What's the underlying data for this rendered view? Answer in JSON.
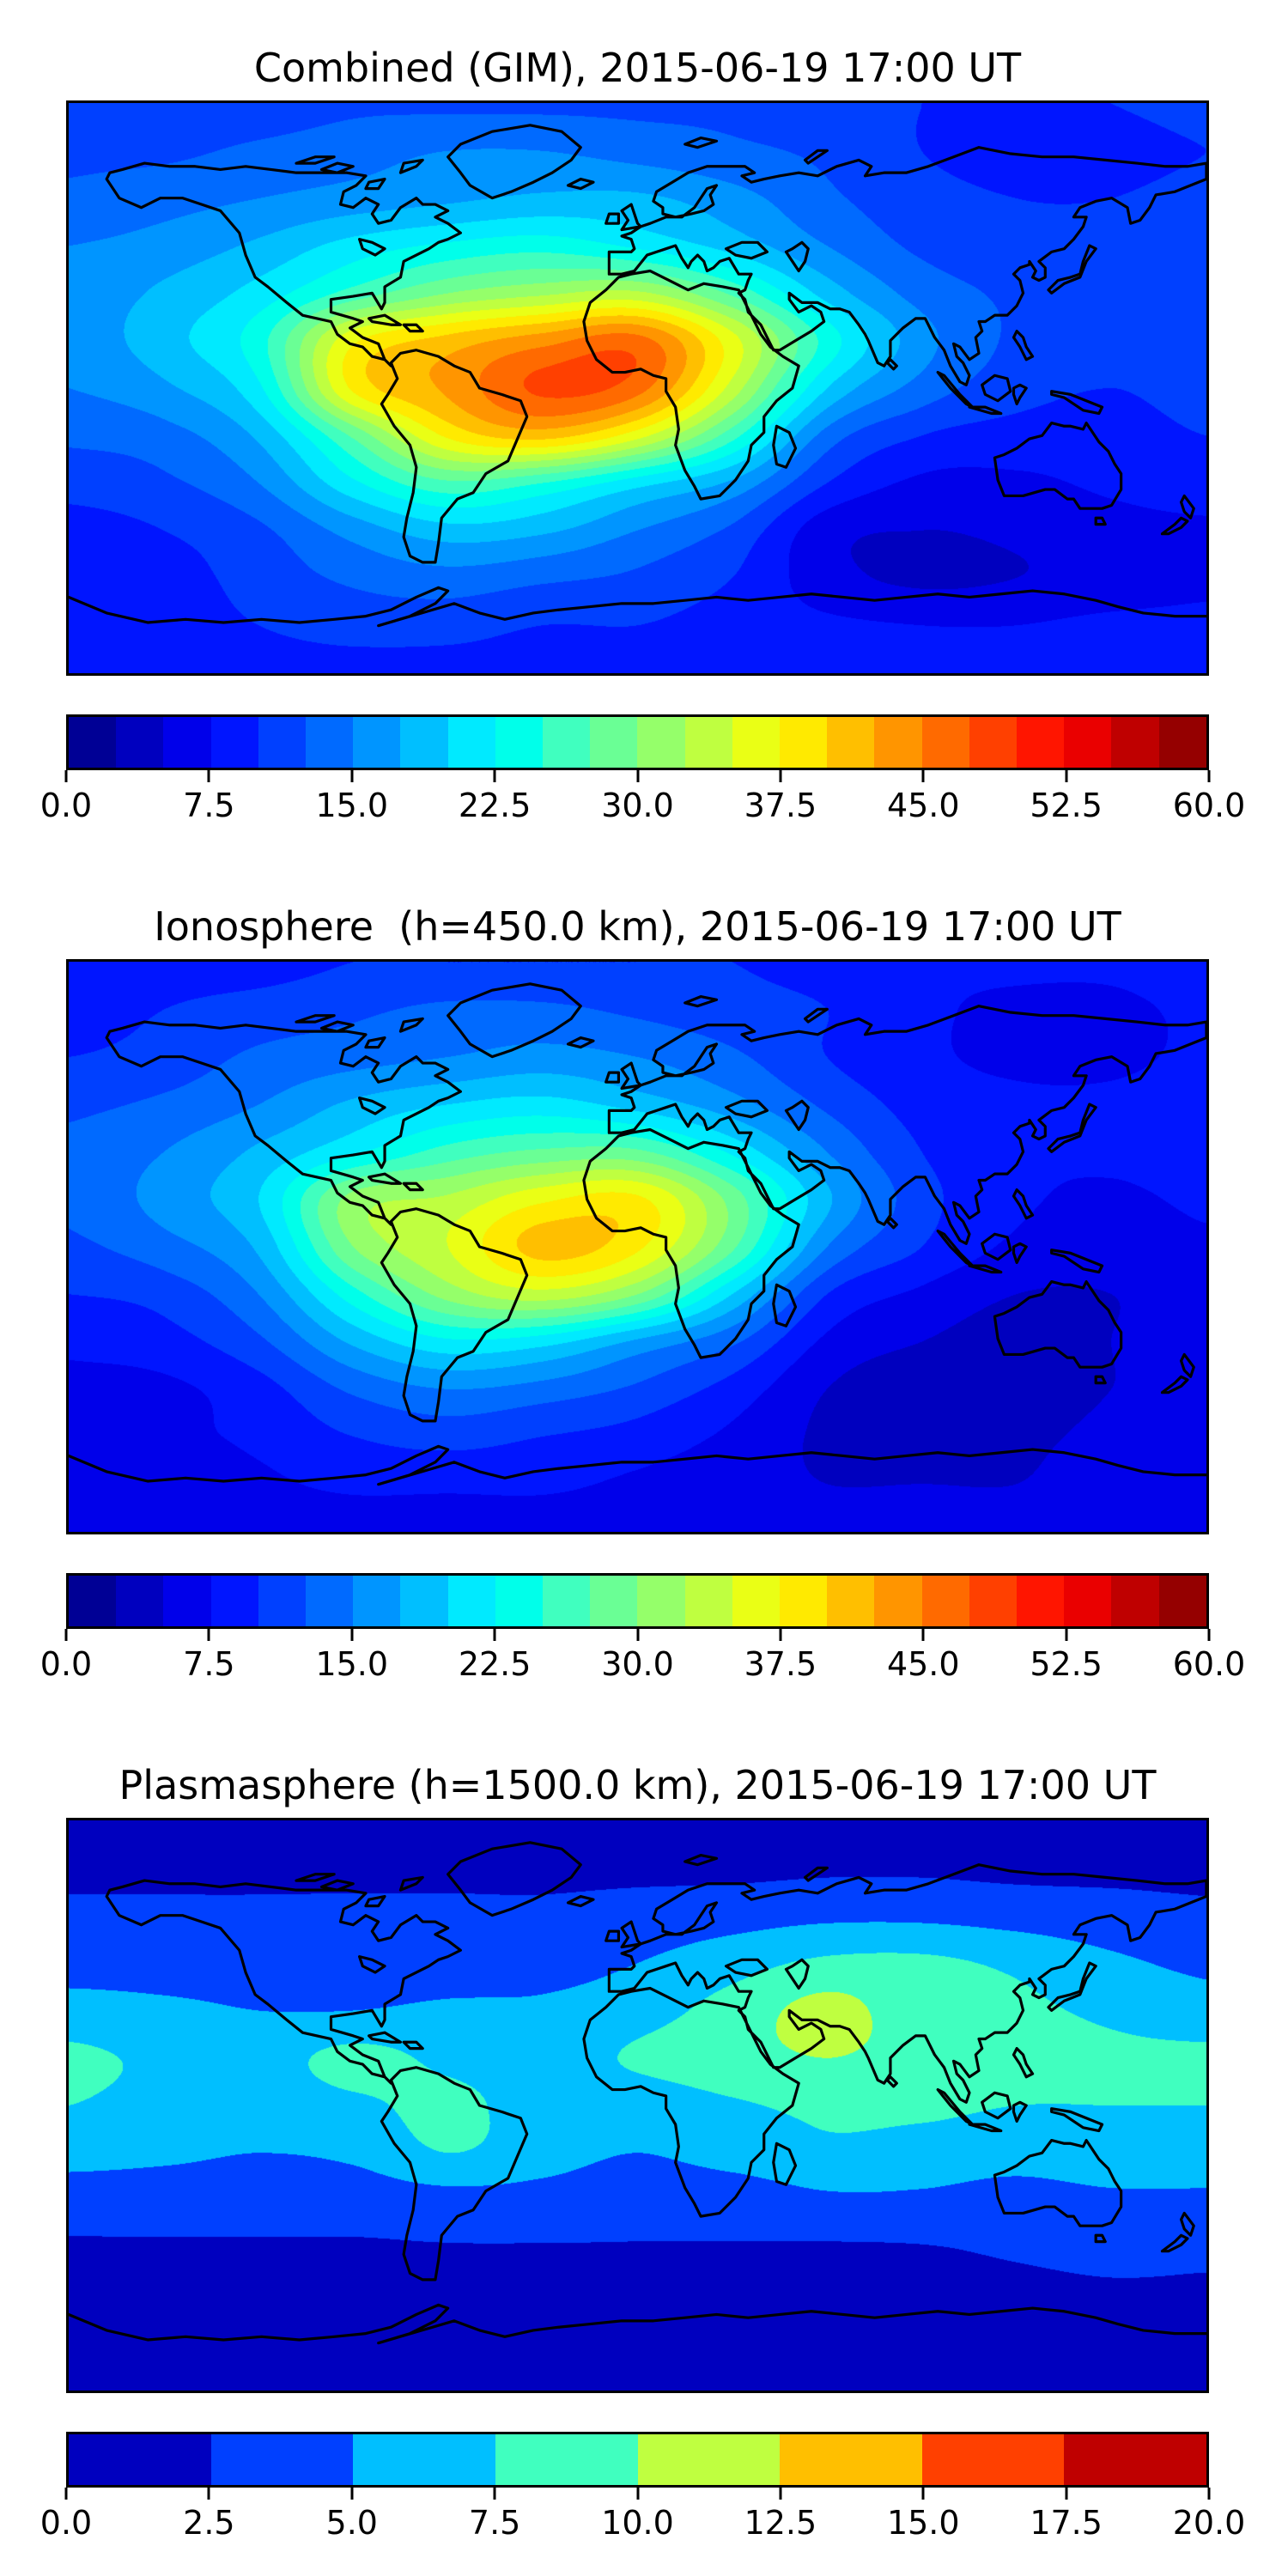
{
  "figure": {
    "background": "#ffffff",
    "text_color": "#000000",
    "coastline_color": "#000000",
    "colormap_name": "jet"
  },
  "panels": [
    {
      "title": "Combined (GIM), 2015-06-19 17:00 UT",
      "colorbar": {
        "orientation": "horizontal",
        "vmin": 0.0,
        "vmax": 60.0,
        "tick_labels": [
          "0.0",
          "7.5",
          "15.0",
          "22.5",
          "30.0",
          "37.5",
          "45.0",
          "52.5",
          "60.0"
        ],
        "segment_colors": [
          "#000095",
          "#0000bf",
          "#0000ea",
          "#0015ff",
          "#0040ff",
          "#006aff",
          "#0095ff",
          "#00bfff",
          "#00eaff",
          "#00ffea",
          "#40ffbf",
          "#6aff95",
          "#95ff6a",
          "#bfff40",
          "#eaff15",
          "#ffea00",
          "#ffbf00",
          "#ff9500",
          "#ff6a00",
          "#ff4000",
          "#ff1500",
          "#ea0000",
          "#bf0000",
          "#950000"
        ]
      }
    },
    {
      "title": "Ionosphere  (h=450.0 km), 2015-06-19 17:00 UT",
      "colorbar": {
        "orientation": "horizontal",
        "vmin": 0.0,
        "vmax": 60.0,
        "tick_labels": [
          "0.0",
          "7.5",
          "15.0",
          "22.5",
          "30.0",
          "37.5",
          "45.0",
          "52.5",
          "60.0"
        ],
        "segment_colors": [
          "#000095",
          "#0000bf",
          "#0000ea",
          "#0015ff",
          "#0040ff",
          "#006aff",
          "#0095ff",
          "#00bfff",
          "#00eaff",
          "#00ffea",
          "#40ffbf",
          "#6aff95",
          "#95ff6a",
          "#bfff40",
          "#eaff15",
          "#ffea00",
          "#ffbf00",
          "#ff9500",
          "#ff6a00",
          "#ff4000",
          "#ff1500",
          "#ea0000",
          "#bf0000",
          "#950000"
        ]
      }
    },
    {
      "title": "Plasmasphere (h=1500.0 km), 2015-06-19 17:00 UT",
      "colorbar": {
        "orientation": "horizontal",
        "vmin": 0.0,
        "vmax": 20.0,
        "tick_labels": [
          "0.0",
          "2.5",
          "5.0",
          "7.5",
          "10.0",
          "12.5",
          "15.0",
          "17.5",
          "20.0"
        ],
        "segment_colors": [
          "#0000bf",
          "#0040ff",
          "#00bfff",
          "#40ffbf",
          "#bfff40",
          "#ffbf00",
          "#ff4000",
          "#bf0000"
        ]
      }
    }
  ],
  "chart_data": [
    {
      "type": "heatmap",
      "title": "Combined (GIM), 2015-06-19 17:00 UT",
      "colormap": "jet",
      "vmin": 0.0,
      "vmax": 60.0,
      "level_step": 2.5,
      "n_levels": 24,
      "colorbar_ticks": [
        0.0,
        7.5,
        15.0,
        22.5,
        30.0,
        37.5,
        45.0,
        52.5,
        60.0
      ],
      "projection": "equirectangular",
      "lon": [
        -180,
        -150,
        -120,
        -90,
        -60,
        -30,
        0,
        30,
        60,
        90,
        120,
        150,
        180
      ],
      "lat": [
        90,
        75,
        60,
        45,
        30,
        15,
        0,
        -15,
        -30,
        -45,
        -60,
        -75,
        -90
      ],
      "values": [
        [
          11,
          11,
          11,
          12,
          12,
          12,
          12,
          12,
          11,
          10,
          10,
          10,
          11
        ],
        [
          12,
          12,
          13,
          14,
          15,
          15,
          14,
          13,
          12,
          10,
          9,
          9,
          10
        ],
        [
          13,
          14,
          15,
          16,
          17,
          18,
          18,
          16,
          13,
          11,
          10,
          10,
          11
        ],
        [
          15,
          16,
          18,
          21,
          23,
          24,
          22,
          19,
          15,
          12,
          11,
          11,
          12
        ],
        [
          16,
          18,
          21,
          26,
          30,
          32,
          33,
          27,
          19,
          14,
          12,
          11,
          12
        ],
        [
          16,
          19,
          24,
          37,
          41,
          44,
          46,
          36,
          24,
          16,
          12,
          11,
          12
        ],
        [
          15,
          17,
          22,
          38,
          43,
          48,
          46,
          34,
          20,
          14,
          11,
          10,
          11
        ],
        [
          13,
          14,
          18,
          28,
          38,
          41,
          36,
          26,
          14,
          10,
          9,
          9,
          10
        ],
        [
          11,
          12,
          15,
          22,
          27,
          25,
          21,
          17,
          10,
          7,
          7,
          8,
          9
        ],
        [
          9,
          10,
          12,
          16,
          19,
          18,
          15,
          12,
          6,
          5,
          5.5,
          6.5,
          7
        ],
        [
          9,
          9,
          11,
          13,
          14,
          13,
          12,
          10,
          6,
          4.5,
          5,
          6,
          7
        ],
        [
          9,
          9,
          10,
          11,
          11,
          10,
          10,
          9,
          8,
          7.5,
          7.5,
          8,
          8
        ],
        [
          9,
          9,
          9,
          9,
          9,
          9,
          9,
          9,
          9,
          8,
          8,
          8,
          8
        ]
      ]
    },
    {
      "type": "heatmap",
      "title": "Ionosphere  (h=450.0 km), 2015-06-19 17:00 UT",
      "colormap": "jet",
      "vmin": 0.0,
      "vmax": 60.0,
      "level_step": 2.5,
      "n_levels": 24,
      "colorbar_ticks": [
        0.0,
        7.5,
        15.0,
        22.5,
        30.0,
        37.5,
        45.0,
        52.5,
        60.0
      ],
      "projection": "equirectangular",
      "lon": [
        -180,
        -150,
        -120,
        -90,
        -60,
        -30,
        0,
        30,
        60,
        90,
        120,
        150,
        180
      ],
      "lat": [
        90,
        75,
        60,
        45,
        30,
        15,
        0,
        -15,
        -30,
        -45,
        -60,
        -75,
        -90
      ],
      "values": [
        [
          9,
          9,
          9,
          10,
          10,
          10,
          10,
          10,
          9,
          8,
          8,
          8,
          9
        ],
        [
          9,
          10,
          11,
          12,
          13,
          13,
          12,
          11,
          10,
          8,
          7,
          7,
          8
        ],
        [
          10,
          11,
          13,
          14,
          15,
          16,
          15,
          13,
          10,
          8,
          7,
          7,
          8
        ],
        [
          12,
          13,
          15,
          18,
          20,
          21,
          19,
          16,
          12,
          9,
          8,
          8,
          9
        ],
        [
          13,
          15,
          18,
          22,
          26,
          28,
          28,
          22,
          15,
          10,
          8,
          8,
          9
        ],
        [
          13,
          16,
          20,
          31,
          33,
          37,
          38,
          29,
          18,
          11,
          8,
          7,
          8
        ],
        [
          12,
          14,
          18,
          30,
          35,
          41,
          38,
          28,
          15,
          10,
          7,
          6,
          7
        ],
        [
          10,
          11,
          15,
          24,
          31,
          34,
          30,
          20,
          10,
          7,
          5,
          5,
          6
        ],
        [
          8,
          9,
          12,
          18,
          22,
          21,
          17,
          13,
          7,
          5,
          4,
          5,
          6
        ],
        [
          7,
          7,
          9,
          13,
          15,
          14,
          12,
          9,
          5,
          3.5,
          4,
          5,
          5.5
        ],
        [
          7,
          7,
          8,
          10,
          11,
          10,
          9,
          7,
          4.5,
          3.5,
          4.5,
          5.5,
          6.5
        ],
        [
          6,
          6,
          7,
          8,
          8,
          8,
          7,
          6,
          5,
          5,
          5,
          6,
          6
        ],
        [
          6,
          6,
          6,
          6,
          6,
          6,
          6,
          6,
          6,
          6,
          6,
          6,
          6
        ]
      ]
    },
    {
      "type": "heatmap",
      "title": "Plasmasphere (h=1500.0 km), 2015-06-19 17:00 UT",
      "colormap": "jet",
      "vmin": 0.0,
      "vmax": 20.0,
      "level_step": 2.5,
      "n_levels": 8,
      "colorbar_ticks": [
        0.0,
        2.5,
        5.0,
        7.5,
        10.0,
        12.5,
        15.0,
        17.5,
        20.0
      ],
      "projection": "equirectangular",
      "lon": [
        -180,
        -150,
        -120,
        -90,
        -60,
        -30,
        0,
        30,
        60,
        90,
        120,
        150,
        180
      ],
      "lat": [
        90,
        75,
        60,
        45,
        30,
        15,
        0,
        -15,
        -30,
        -45,
        -60,
        -75,
        -90
      ],
      "values": [
        [
          2,
          2,
          2,
          2,
          2,
          2,
          2,
          2,
          2,
          2,
          2,
          2,
          2
        ],
        [
          2,
          2,
          2,
          2,
          2,
          2,
          2,
          2,
          2.2,
          2.2,
          2,
          2,
          2
        ],
        [
          3,
          3,
          3,
          3,
          3,
          3,
          3.5,
          4,
          4.5,
          4.5,
          4,
          3.5,
          3
        ],
        [
          4,
          4,
          4,
          3.5,
          3.5,
          4,
          5,
          6.5,
          8,
          8,
          7,
          5.5,
          4.5
        ],
        [
          6,
          5.5,
          5,
          5,
          5.5,
          5.5,
          6.5,
          8.5,
          10.8,
          8.5,
          8,
          7,
          6
        ],
        [
          8,
          7,
          6.5,
          8.2,
          7,
          6.5,
          7.8,
          9,
          10,
          9,
          8.5,
          8,
          8
        ],
        [
          7.5,
          6.5,
          6,
          7,
          8,
          6.5,
          6.2,
          7.2,
          8,
          8,
          7.5,
          7.5,
          7.5
        ],
        [
          6,
          5.5,
          5,
          5.5,
          7.5,
          6,
          5,
          6,
          7,
          6.5,
          6,
          6.5,
          6.5
        ],
        [
          3.5,
          3.5,
          3.5,
          3.5,
          4,
          4,
          3.5,
          3.5,
          4.5,
          4.5,
          4,
          4.5,
          4.5
        ],
        [
          2.3,
          2.3,
          2.3,
          2.3,
          2.4,
          2.4,
          2.4,
          2.4,
          2.3,
          2.4,
          2.8,
          3.2,
          3
        ],
        [
          2,
          2,
          2,
          2,
          2.2,
          2.2,
          2.2,
          2.2,
          2,
          2,
          2,
          2.2,
          2.2
        ],
        [
          2,
          2,
          2,
          2,
          2,
          2,
          2,
          2,
          2,
          2,
          2,
          2,
          2
        ],
        [
          2,
          2,
          2,
          2,
          2,
          2,
          2,
          2,
          2,
          2,
          2,
          2,
          2
        ]
      ]
    }
  ]
}
